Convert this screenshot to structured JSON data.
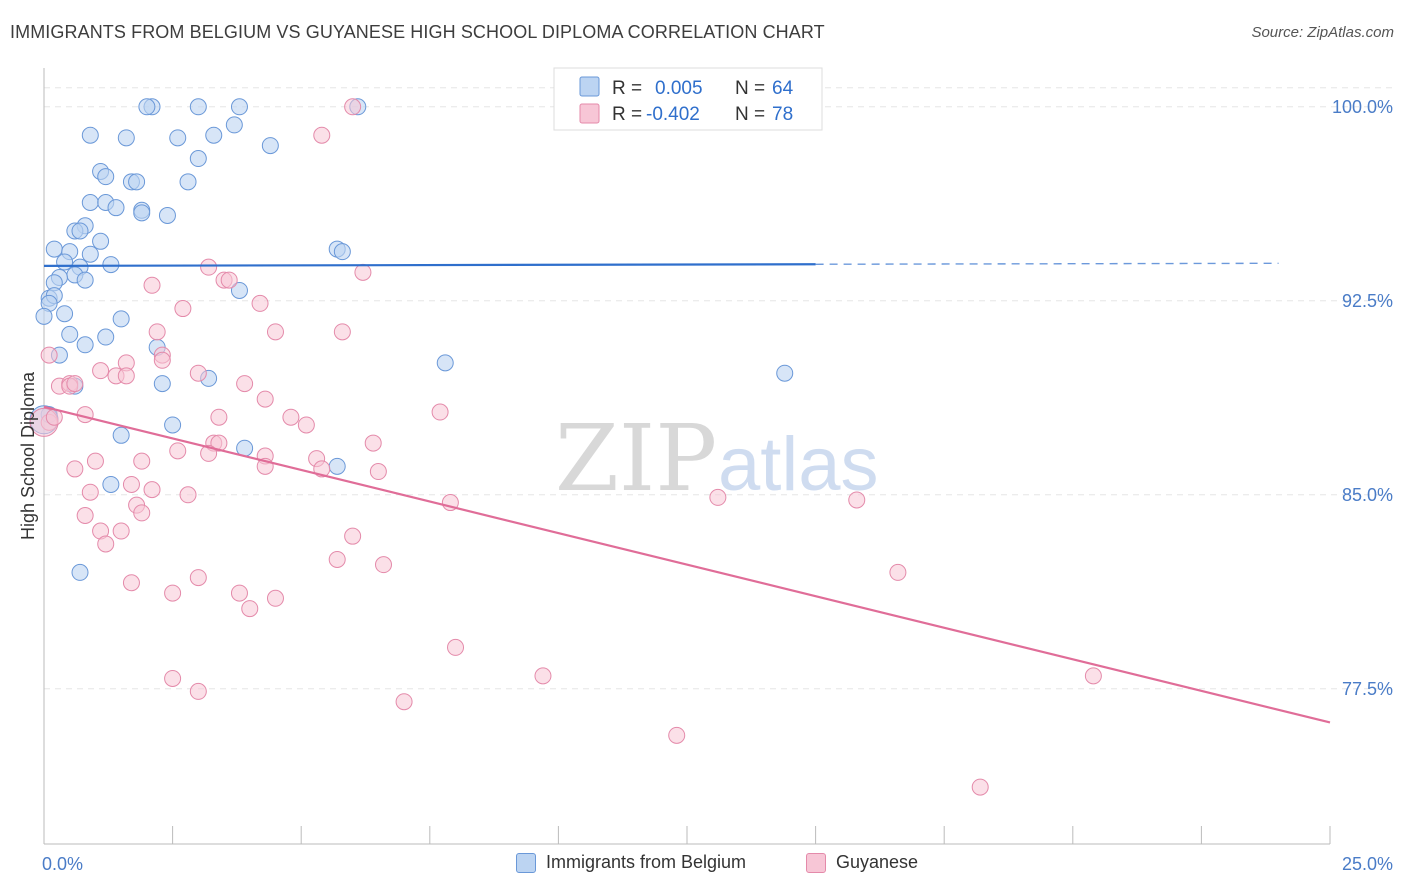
{
  "header": {
    "title": "IMMIGRANTS FROM BELGIUM VS GUYANESE HIGH SCHOOL DIPLOMA CORRELATION CHART",
    "source": "Source: ZipAtlas.com"
  },
  "watermark": {
    "zip": "ZIP",
    "atlas": "atlas"
  },
  "legend_top": {
    "r_label": "R =",
    "n_label": "N =",
    "series": [
      {
        "r": "0.005",
        "n": "64"
      },
      {
        "r": "-0.402",
        "n": "78"
      }
    ]
  },
  "legend_bottom": {
    "items": [
      "Immigrants from Belgium",
      "Guyanese"
    ]
  },
  "chart_data": {
    "type": "scatter",
    "ylabel": "High School Diploma",
    "xlim": [
      0,
      25
    ],
    "ylim": [
      71.5,
      101.5
    ],
    "x_ticks": [
      "0.0%",
      "25.0%"
    ],
    "y_ticks": [
      {
        "value": 100.0,
        "label": "100.0%"
      },
      {
        "value": 92.5,
        "label": "92.5%"
      },
      {
        "value": 85.0,
        "label": "85.0%"
      },
      {
        "value": 77.5,
        "label": "77.5%"
      }
    ],
    "grid": true,
    "colors": {
      "belgium_fill": "#bcd4f2",
      "belgium_stroke": "#6a98d8",
      "belgium_line": "#2f6fcc",
      "guyanese_fill": "#f7c6d6",
      "guyanese_stroke": "#e48aaa",
      "guyanese_line": "#e06d98",
      "tick_label": "#4a7cc7"
    },
    "series": [
      {
        "name": "Immigrants from Belgium",
        "trend": {
          "x_start": 0.0,
          "y_start": 93.85,
          "x_solid_end": 15.0,
          "x_end": 24.0,
          "y_end": 93.95
        },
        "points": [
          [
            2.1,
            100.0
          ],
          [
            2.0,
            100.0
          ],
          [
            3.0,
            100.0
          ],
          [
            3.8,
            100.0
          ],
          [
            6.1,
            100.0
          ],
          [
            0.9,
            98.9
          ],
          [
            1.6,
            98.8
          ],
          [
            2.6,
            98.8
          ],
          [
            3.3,
            98.9
          ],
          [
            3.7,
            99.3
          ],
          [
            4.4,
            98.5
          ],
          [
            3.0,
            98.0
          ],
          [
            1.1,
            97.5
          ],
          [
            1.2,
            97.3
          ],
          [
            1.7,
            97.1
          ],
          [
            1.8,
            97.1
          ],
          [
            2.8,
            97.1
          ],
          [
            0.9,
            96.3
          ],
          [
            1.2,
            96.3
          ],
          [
            1.4,
            96.1
          ],
          [
            1.9,
            96.0
          ],
          [
            1.9,
            95.9
          ],
          [
            2.4,
            95.8
          ],
          [
            0.8,
            95.4
          ],
          [
            0.6,
            95.2
          ],
          [
            0.7,
            95.2
          ],
          [
            1.1,
            94.8
          ],
          [
            0.2,
            94.5
          ],
          [
            0.5,
            94.4
          ],
          [
            0.9,
            94.3
          ],
          [
            5.7,
            94.5
          ],
          [
            5.8,
            94.4
          ],
          [
            0.4,
            94.0
          ],
          [
            0.7,
            93.8
          ],
          [
            1.3,
            93.9
          ],
          [
            0.6,
            93.5
          ],
          [
            0.3,
            93.4
          ],
          [
            0.2,
            93.2
          ],
          [
            0.8,
            93.3
          ],
          [
            3.8,
            92.9
          ],
          [
            0.1,
            92.6
          ],
          [
            0.2,
            92.7
          ],
          [
            0.1,
            92.4
          ],
          [
            0.4,
            92.0
          ],
          [
            0.0,
            91.9
          ],
          [
            1.5,
            91.8
          ],
          [
            0.5,
            91.2
          ],
          [
            1.2,
            91.1
          ],
          [
            0.8,
            90.8
          ],
          [
            2.2,
            90.7
          ],
          [
            0.3,
            90.4
          ],
          [
            7.8,
            90.1
          ],
          [
            14.4,
            89.7
          ],
          [
            3.2,
            89.5
          ],
          [
            2.3,
            89.3
          ],
          [
            0.6,
            89.2
          ],
          [
            0.1,
            88.1
          ],
          [
            2.5,
            87.7
          ],
          [
            1.5,
            87.3
          ],
          [
            3.9,
            86.8
          ],
          [
            5.7,
            86.1
          ],
          [
            1.3,
            85.4
          ],
          [
            0.7,
            82.0
          ],
          [
            0.0,
            87.9
          ]
        ]
      },
      {
        "name": "Guyanese",
        "trend": {
          "x_start": 0.0,
          "y_start": 88.4,
          "x_end": 25.0,
          "y_end": 76.2
        },
        "points": [
          [
            6.0,
            100.0
          ],
          [
            5.4,
            98.9
          ],
          [
            3.2,
            93.8
          ],
          [
            3.5,
            93.3
          ],
          [
            3.6,
            93.3
          ],
          [
            6.2,
            93.6
          ],
          [
            2.1,
            93.1
          ],
          [
            4.2,
            92.4
          ],
          [
            2.7,
            92.2
          ],
          [
            4.5,
            91.3
          ],
          [
            5.8,
            91.3
          ],
          [
            2.2,
            91.3
          ],
          [
            0.1,
            90.4
          ],
          [
            2.3,
            90.4
          ],
          [
            2.3,
            90.2
          ],
          [
            1.6,
            90.1
          ],
          [
            1.1,
            89.8
          ],
          [
            1.4,
            89.6
          ],
          [
            1.6,
            89.6
          ],
          [
            3.0,
            89.7
          ],
          [
            0.3,
            89.2
          ],
          [
            0.5,
            89.3
          ],
          [
            0.5,
            89.2
          ],
          [
            0.6,
            89.3
          ],
          [
            3.9,
            89.3
          ],
          [
            4.3,
            88.7
          ],
          [
            7.7,
            88.2
          ],
          [
            0.8,
            88.1
          ],
          [
            3.4,
            88.0
          ],
          [
            4.8,
            88.0
          ],
          [
            5.1,
            87.7
          ],
          [
            0.1,
            87.8
          ],
          [
            3.3,
            87.0
          ],
          [
            3.4,
            87.0
          ],
          [
            6.4,
            87.0
          ],
          [
            2.6,
            86.7
          ],
          [
            3.2,
            86.6
          ],
          [
            4.3,
            86.5
          ],
          [
            5.3,
            86.4
          ],
          [
            1.0,
            86.3
          ],
          [
            1.9,
            86.3
          ],
          [
            4.3,
            86.1
          ],
          [
            5.4,
            86.0
          ],
          [
            0.6,
            86.0
          ],
          [
            6.5,
            85.9
          ],
          [
            1.7,
            85.4
          ],
          [
            2.1,
            85.2
          ],
          [
            0.9,
            85.1
          ],
          [
            2.8,
            85.0
          ],
          [
            13.1,
            84.9
          ],
          [
            15.8,
            84.8
          ],
          [
            7.9,
            84.7
          ],
          [
            1.8,
            84.6
          ],
          [
            1.9,
            84.3
          ],
          [
            0.8,
            84.2
          ],
          [
            1.1,
            83.6
          ],
          [
            1.5,
            83.6
          ],
          [
            6.0,
            83.4
          ],
          [
            1.2,
            83.1
          ],
          [
            5.7,
            82.5
          ],
          [
            6.6,
            82.3
          ],
          [
            16.6,
            82.0
          ],
          [
            3.0,
            81.8
          ],
          [
            1.7,
            81.6
          ],
          [
            2.5,
            81.2
          ],
          [
            3.8,
            81.2
          ],
          [
            4.5,
            81.0
          ],
          [
            4.0,
            80.6
          ],
          [
            8.0,
            79.1
          ],
          [
            9.7,
            78.0
          ],
          [
            20.4,
            78.0
          ],
          [
            2.5,
            77.9
          ],
          [
            3.0,
            77.4
          ],
          [
            7.0,
            77.0
          ],
          [
            12.3,
            75.7
          ],
          [
            18.2,
            73.7
          ],
          [
            0.0,
            87.8
          ],
          [
            0.2,
            88.0
          ]
        ]
      }
    ]
  }
}
